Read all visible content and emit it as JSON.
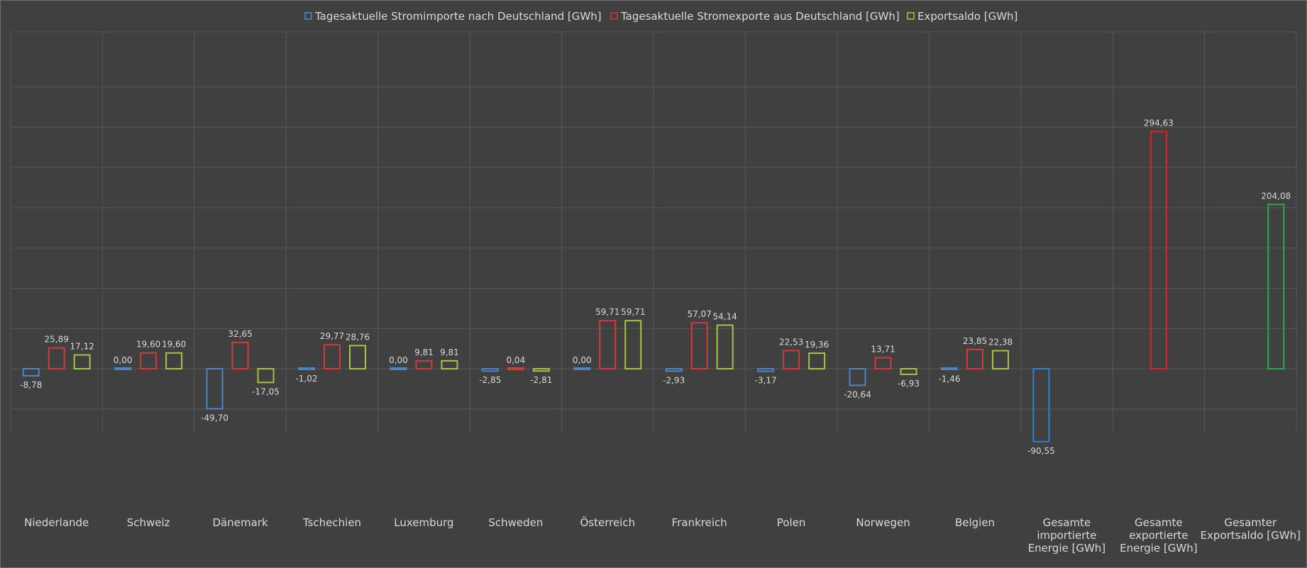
{
  "chart_data": {
    "type": "bar",
    "title": "",
    "xlabel": "",
    "ylabel": "",
    "ylim": [
      -140,
      350
    ],
    "y_gridline_step": 50,
    "categories": [
      "Niederlande",
      "Schweiz",
      "Dänemark",
      "Tschechien",
      "Luxemburg",
      "Schweden",
      "Österreich",
      "Frankreich",
      "Polen",
      "Norwegen",
      "Belgien",
      "Gesamte importierte Energie [GWh]",
      "Gesamte exportierte Energie [GWh]",
      "Gesamter Exportsaldo [GWh]"
    ],
    "category_lines": [
      [
        "Niederlande"
      ],
      [
        "Schweiz"
      ],
      [
        "Dänemark"
      ],
      [
        "Tschechien"
      ],
      [
        "Luxemburg"
      ],
      [
        "Schweden"
      ],
      [
        "Österreich"
      ],
      [
        "Frankreich"
      ],
      [
        "Polen"
      ],
      [
        "Norwegen"
      ],
      [
        "Belgien"
      ],
      [
        "Gesamte",
        "importierte",
        "Energie [GWh]"
      ],
      [
        "Gesamte",
        "exportierte",
        "Energie [GWh]"
      ],
      [
        "Gesamter",
        "Exportsaldo [GWh]"
      ]
    ],
    "series": [
      {
        "name": "Tagesaktuelle Stromimporte nach Deutschland [GWh]",
        "color": "#4a86c8",
        "values": [
          -8.78,
          0.0,
          -49.7,
          -1.02,
          0.0,
          -2.85,
          0.0,
          -2.93,
          -3.17,
          -20.64,
          -1.46,
          -90.55,
          null,
          null
        ],
        "labels": [
          "-8,78",
          "0,00",
          "-49,70",
          "-1,02",
          "0,00",
          "-2,85",
          "0,00",
          "-2,93",
          "-3,17",
          "-20,64",
          "-1,46",
          "-90,55",
          null,
          null
        ]
      },
      {
        "name": "Tagesaktuelle Stromexporte aus Deutschland [GWh]",
        "color": "#d33a3a",
        "values": [
          25.89,
          19.6,
          32.65,
          29.77,
          9.81,
          0.04,
          59.71,
          57.07,
          22.53,
          13.71,
          23.85,
          null,
          294.63,
          null
        ],
        "labels": [
          "25,89",
          "19,60",
          "32,65",
          "29,77",
          "9,81",
          "0,04",
          "59,71",
          "57,07",
          "22,53",
          "13,71",
          "23,85",
          null,
          "294,63",
          null
        ],
        "color_overrides": {
          "12": "#e0202a"
        }
      },
      {
        "name": "Exportsaldo [GWh]",
        "color": "#a4c63c",
        "values": [
          17.12,
          19.6,
          -17.05,
          28.76,
          9.81,
          -2.81,
          59.71,
          54.14,
          19.36,
          -6.93,
          22.38,
          null,
          null,
          204.08
        ],
        "labels": [
          "17,12",
          "19,60",
          "-17,05",
          "28,76",
          "9,81",
          "-2,81",
          "59,71",
          "54,14",
          "19,36",
          "-6,93",
          "22,38",
          null,
          null,
          "204,08"
        ],
        "color_overrides": {
          "13": "#2aa84a"
        }
      }
    ],
    "totals_color_overrides": {
      "11": "#2f7fd0"
    },
    "legend": {
      "position": "top-center",
      "entries": [
        {
          "label": "Tagesaktuelle Stromimporte nach Deutschland [GWh]",
          "color": "#4a86c8"
        },
        {
          "label": "Tagesaktuelle Stromexporte aus Deutschland [GWh]",
          "color": "#d33a3a"
        },
        {
          "label": "Exportsaldo [GWh]",
          "color": "#a4c63c"
        }
      ]
    },
    "grid": true
  },
  "colors": {
    "background": "#404040",
    "grid": "#575757",
    "text": "#d9d9d9",
    "frame": "#6e6e6e"
  }
}
